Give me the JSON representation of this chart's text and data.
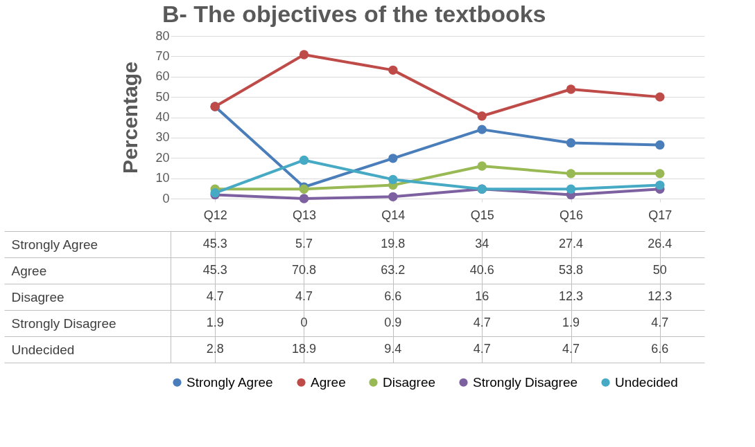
{
  "chart_data": {
    "type": "line",
    "title": "B- The objectives of the textbooks",
    "ylabel": "Percentage",
    "categories": [
      "Q12",
      "Q13",
      "Q14",
      "Q15",
      "Q16",
      "Q17"
    ],
    "series": [
      {
        "name": "Strongly Agree",
        "color": "#4a7ebb",
        "values": [
          45.3,
          5.7,
          19.8,
          34,
          27.4,
          26.4
        ]
      },
      {
        "name": "Agree",
        "color": "#be4b48",
        "values": [
          45.3,
          70.8,
          63.2,
          40.6,
          53.8,
          50
        ]
      },
      {
        "name": "Disagree",
        "color": "#98b954",
        "values": [
          4.7,
          4.7,
          6.6,
          16,
          12.3,
          12.3
        ]
      },
      {
        "name": "Strongly Disagree",
        "color": "#7d60a0",
        "values": [
          1.9,
          0,
          0.9,
          4.7,
          1.9,
          4.7
        ]
      },
      {
        "name": "Undecided",
        "color": "#46aac5",
        "values": [
          2.8,
          18.9,
          9.4,
          4.7,
          4.7,
          6.6
        ]
      }
    ],
    "ylim": [
      0,
      80
    ],
    "yticks": [
      0,
      10,
      20,
      30,
      40,
      50,
      60,
      70,
      80
    ],
    "grid": "y",
    "legend": "bottom",
    "marker": "circle",
    "line_style": "solid",
    "data_labels": true
  }
}
